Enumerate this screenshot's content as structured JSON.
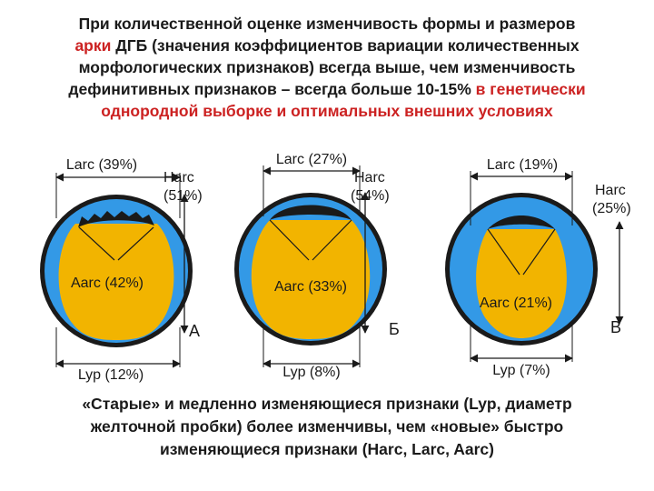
{
  "heading": {
    "line1": "При количественной оценке изменчивость формы и размеров",
    "line2_red": "арки",
    "line2_rest": " ДГБ (значения коэффициентов вариации количественных",
    "line3": "морфологических признаков) всегда выше, чем  изменчивость",
    "line4_black": "дефинитивных признаков – всегда больше 10-15% ",
    "line4_red": "в генетически",
    "line5_red": "однородной выборке и оптимальных внешних условиях"
  },
  "diagrams": [
    {
      "larc": "Larc (39%)",
      "harc_line1": "Harc",
      "harc_line2": "(51%)",
      "aarc": "Aarc (42%)",
      "lyp": "Lyp (12%)",
      "letter": "А"
    },
    {
      "larc": "Larc (27%)",
      "harc_line1": "Harc",
      "harc_line2": "(54%)",
      "aarc": "Aarc (33%)",
      "lyp": "Lyp (8%)",
      "letter": "Б"
    },
    {
      "larc": "Larc (19%)",
      "harc_line1": "Harc",
      "harc_line2": "(25%)",
      "aarc": "Aarc (21%)",
      "lyp": "Lyp (7%)",
      "letter": "В"
    }
  ],
  "footer": {
    "line1": "«Старые» и медленно изменяющиеся признаки (Lyp, диаметр",
    "line2": "желточной пробки) более изменчивы, чем «новые» быстро",
    "line3": "изменяющиеся признаки (Harc, Larc, Aarc)"
  },
  "colors": {
    "outer_ring": "#1a1a1a",
    "blue": "#3399e6",
    "yolk": "#f2b400",
    "accent_red": "#cc2222"
  }
}
